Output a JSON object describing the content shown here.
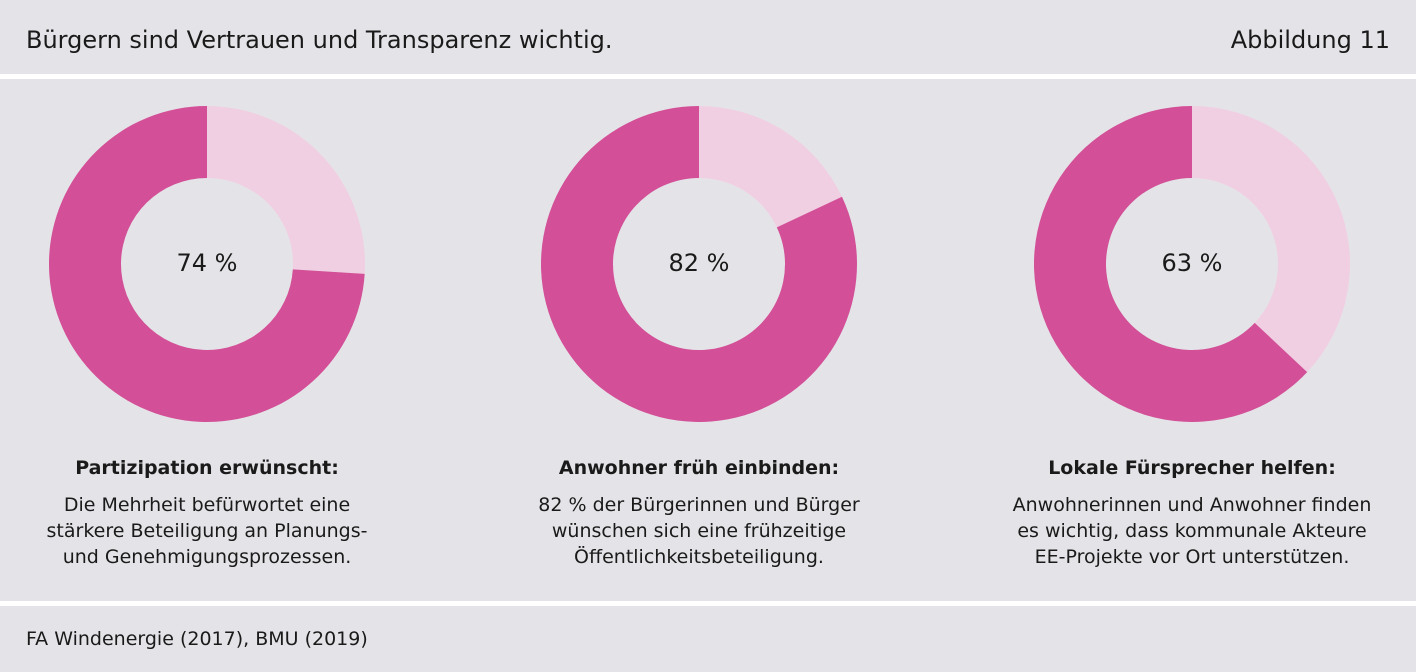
{
  "header": {
    "title": "Bürgern sind Vertrauen und Transparenz wichtig.",
    "figure_label": "Abbildung 11"
  },
  "colors": {
    "primary": "#d34f97",
    "secondary": "#f1cfe3",
    "background": "#e4e4e8",
    "divider": "#ffffff"
  },
  "panels": [
    {
      "value_label": "74 %",
      "heading": "Partizipation erwünscht:",
      "text_lines": [
        "Die Mehrheit befürwortet eine",
        "stärkere Beteiligung an Planungs-",
        "und Genehmigungsprozessen."
      ]
    },
    {
      "value_label": "82 %",
      "heading": "Anwohner früh einbinden:",
      "text_lines": [
        "82 % der Bürgerinnen und Bürger",
        "wünschen sich eine frühzeitige",
        "Öffentlichkeitsbeteiligung."
      ]
    },
    {
      "value_label": "63 %",
      "heading": "Lokale Fürsprecher helfen:",
      "text_lines": [
        "Anwohnerinnen und Anwohner finden",
        "es wichtig, dass kommunale Akteure",
        "EE-Projekte vor Ort unterstützen."
      ]
    }
  ],
  "chart_data": [
    {
      "type": "pie",
      "values": [
        74,
        26
      ],
      "hole": true
    },
    {
      "type": "pie",
      "values": [
        82,
        18
      ],
      "hole": true
    },
    {
      "type": "pie",
      "values": [
        63,
        37
      ],
      "hole": true
    }
  ],
  "footer": {
    "source": "FA Windenergie (2017), BMU (2019)"
  }
}
